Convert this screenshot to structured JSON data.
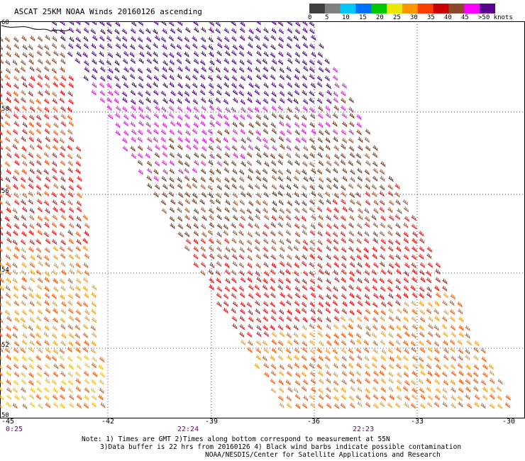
{
  "header": {
    "title": "ASCAT 25KM NOAA Winds 20160126 ascending"
  },
  "legend": {
    "labels": [
      "0",
      "5",
      "10",
      "15",
      "20",
      "25",
      "30",
      "35",
      "40",
      "45",
      ">50 knots"
    ],
    "colors": [
      "#404040",
      "#808080",
      "#00c8ff",
      "#0070ff",
      "#00c800",
      "#e8e800",
      "#ff9600",
      "#ff3c00",
      "#cc0000",
      "#8a4a2a",
      "#ff00ff",
      "#5a0090"
    ]
  },
  "axes": {
    "lat_labels": [
      "60",
      "58",
      "56",
      "54",
      "52",
      "50"
    ],
    "lon_labels": [
      "-45",
      "-42",
      "-39",
      "-36",
      "-33",
      "-30"
    ]
  },
  "times": [
    "0:25",
    "22:24",
    "22:23"
  ],
  "notes": {
    "line1": "Note: 1) Times are GMT 2)Times along bottom correspond to measurement at 55N",
    "line2": "3)Data buffer is 22 hrs from 20160126 4) Black wind barbs indicate possible contamination",
    "line3": "NOAA/NESDIS/Center for Satellite Applications and Research"
  }
}
